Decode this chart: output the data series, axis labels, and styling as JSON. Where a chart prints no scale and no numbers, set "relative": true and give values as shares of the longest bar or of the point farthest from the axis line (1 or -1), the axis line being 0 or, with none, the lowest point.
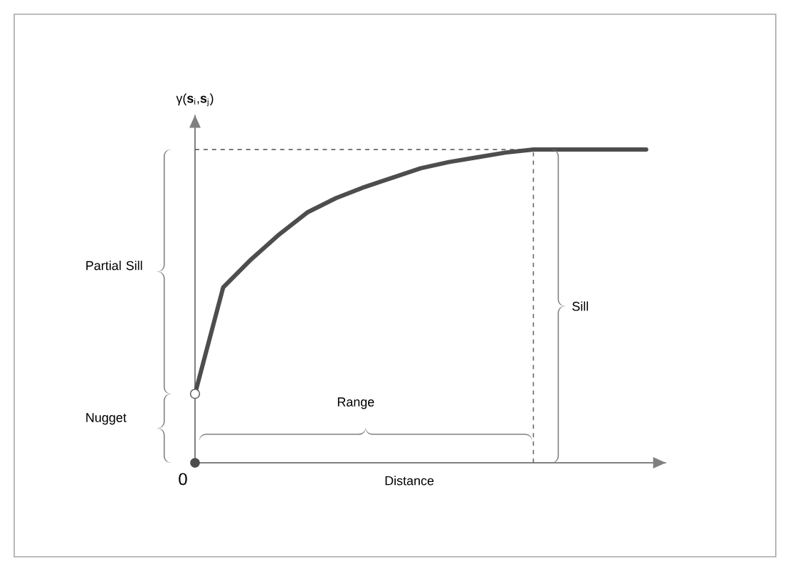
{
  "chart_data": {
    "type": "line",
    "relative": true,
    "xlabel": "Distance",
    "ylabel": "γ(**s**$_{i}$,**s**$_{j}$)",
    "categories": [
      null,
      null,
      null,
      null,
      null,
      null,
      null,
      null,
      null,
      null,
      null,
      null,
      null,
      null,
      null,
      null,
      null
    ],
    "series": [
      {
        "color": "#4d4d4d",
        "values": [
          0.22,
          0.56,
          0.65,
          0.73,
          0.8,
          0.845,
          0.88,
          0.91,
          0.94,
          0.96,
          0.975,
          0.99,
          1,
          1,
          1,
          1,
          1
        ]
      }
    ],
    "ref_lines": [
      {
        "axis": "y",
        "value": 1,
        "color": "#4d4d4d",
        "line_style": "dashed"
      }
    ],
    "annotations": [
      "Partial Sill",
      "Nugget",
      "Range",
      "Sill",
      "0"
    ]
  }
}
